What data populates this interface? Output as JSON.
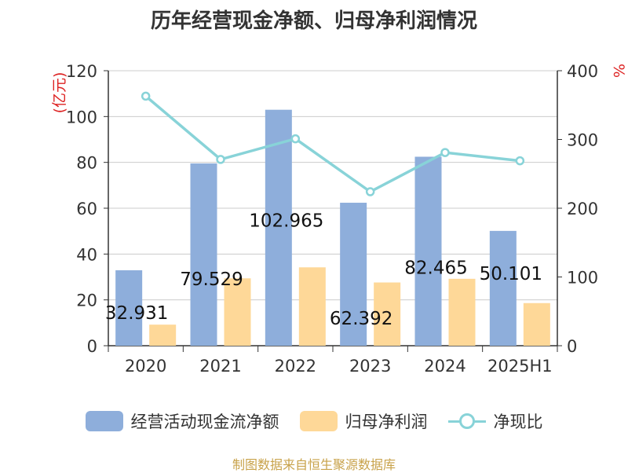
{
  "chart_data": {
    "type": "bar",
    "title": "历年经营现金净额、归母净利润情况",
    "categories": [
      "2020",
      "2021",
      "2022",
      "2023",
      "2024",
      "2025H1"
    ],
    "y_left_label": "(亿元)",
    "y_right_label": "%",
    "y_left_ticks": [
      "0",
      "20",
      "40",
      "60",
      "80",
      "100",
      "120"
    ],
    "y_right_ticks": [
      "0",
      "100",
      "200",
      "300",
      "400"
    ],
    "ylim_left": [
      0,
      120
    ],
    "ylim_right": [
      0,
      400
    ],
    "grid": true,
    "legend_position": "bottom",
    "series": [
      {
        "name": "经营活动现金流净额",
        "kind": "bar",
        "axis": "left",
        "color": "#8eaedb",
        "values": [
          32.931,
          79.529,
          102.965,
          62.392,
          82.465,
          50.101
        ],
        "labels": [
          "32.931",
          "79.529",
          "102.965",
          "62.392",
          "82.465",
          "50.101"
        ]
      },
      {
        "name": "归母净利润",
        "kind": "bar",
        "axis": "left",
        "color": "#fed898",
        "values": [
          9.2,
          29.4,
          34.2,
          27.6,
          29.2,
          18.6
        ]
      },
      {
        "name": "净现比",
        "kind": "line",
        "axis": "right",
        "color": "#88d3d8",
        "values": [
          363,
          271,
          301,
          224,
          281,
          269
        ]
      }
    ]
  },
  "source_note": "制图数据来自恒生聚源数据库"
}
